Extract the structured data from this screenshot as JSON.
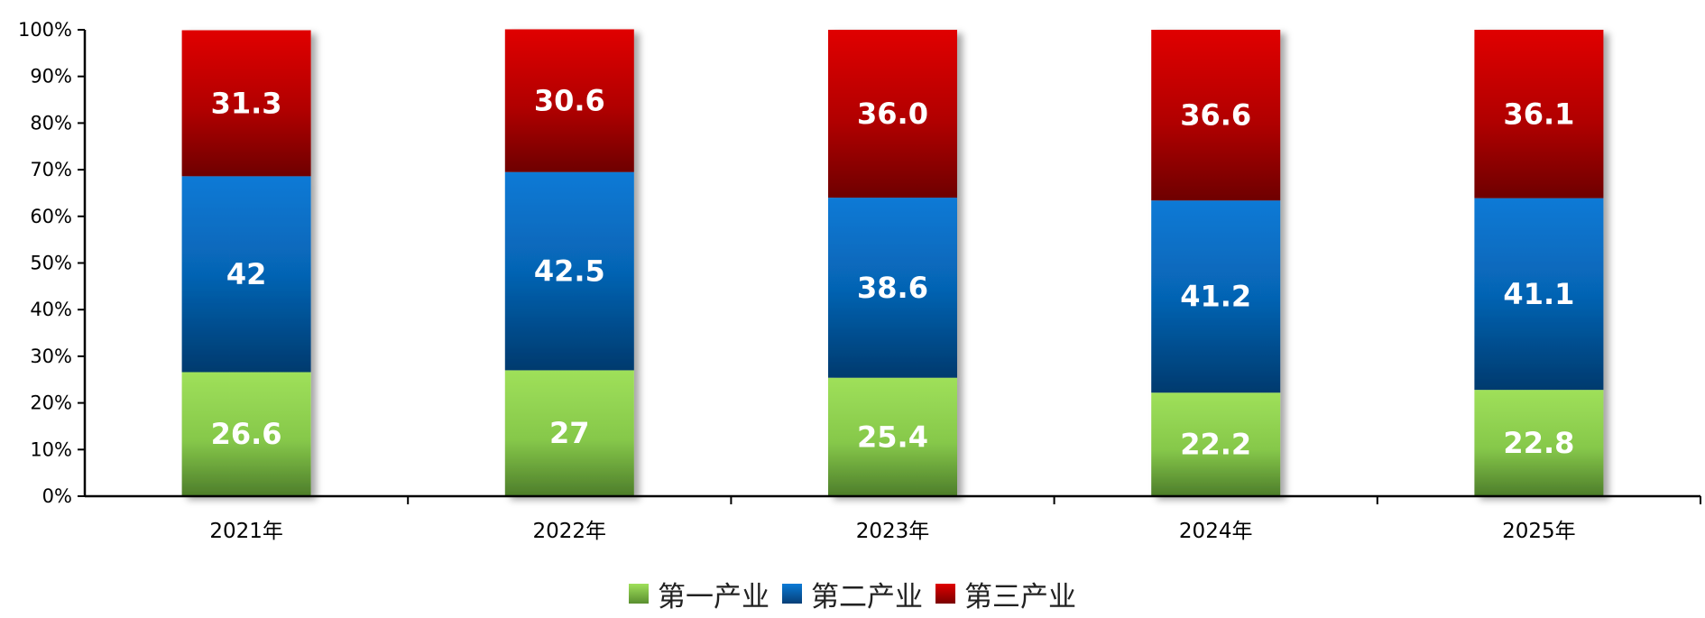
{
  "chart_data": {
    "type": "bar",
    "stacked": true,
    "percent": true,
    "title": "",
    "xlabel": "",
    "ylabel": "",
    "ylim": [
      0,
      100
    ],
    "y_ticks": [
      "0%",
      "10%",
      "20%",
      "30%",
      "40%",
      "50%",
      "60%",
      "70%",
      "80%",
      "90%",
      "100%"
    ],
    "categories": [
      "2021年",
      "2022年",
      "2023年",
      "2024年",
      "2025年"
    ],
    "series": [
      {
        "name": "第一产业",
        "color": "#92d050",
        "values": [
          26.6,
          27,
          25.4,
          22.2,
          22.8
        ],
        "labels": [
          "26.6",
          "27",
          "25.4",
          "22.2",
          "22.8"
        ]
      },
      {
        "name": "第二产业",
        "color": "#0070c0",
        "values": [
          42,
          42.5,
          38.6,
          41.2,
          41.1
        ],
        "labels": [
          "42",
          "42.5",
          "38.6",
          "41.2",
          "41.1"
        ]
      },
      {
        "name": "第三产业",
        "color": "#c00000",
        "values": [
          31.3,
          30.6,
          36.0,
          36.6,
          36.1
        ],
        "labels": [
          "31.3",
          "30.6",
          "36.0",
          "36.6",
          "36.1"
        ]
      }
    ],
    "legend_position": "bottom-center",
    "grid": false
  }
}
